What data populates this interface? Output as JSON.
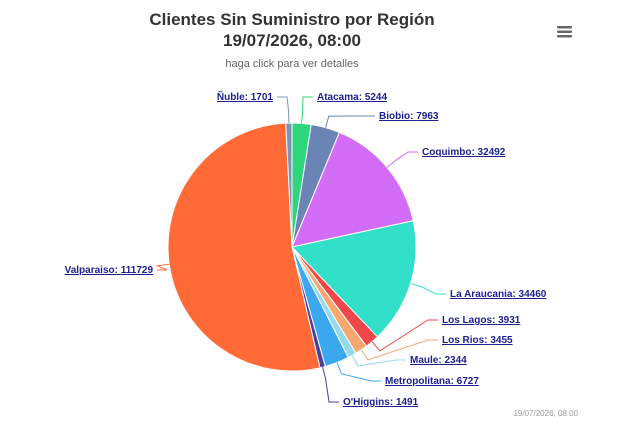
{
  "chart_data": {
    "type": "pie",
    "title": [
      "Clientes Sin Suministro por Región",
      "19/07/2026, 08:00"
    ],
    "subtitle": "haga click para ver detalles",
    "credits": "19/07/2026, 08:00",
    "categories": [
      "Atacama",
      "Biobio",
      "Coquimbo",
      "La Araucania",
      "Los Lagos",
      "Los Rios",
      "Maule",
      "Metropolitana",
      "O'Higgins",
      "Valparaiso",
      "Ñuble"
    ],
    "values": [
      5244,
      7963,
      32492,
      34460,
      3931,
      3455,
      2344,
      6727,
      1491,
      111729,
      1701
    ],
    "colors": [
      "#2ed67b",
      "#6a84b6",
      "#d36cf6",
      "#32e0c9",
      "#f0474a",
      "#f7a770",
      "#93dbec",
      "#3ba7ef",
      "#4a3f9e",
      "#ff6a37",
      "#7f93b5"
    ]
  }
}
